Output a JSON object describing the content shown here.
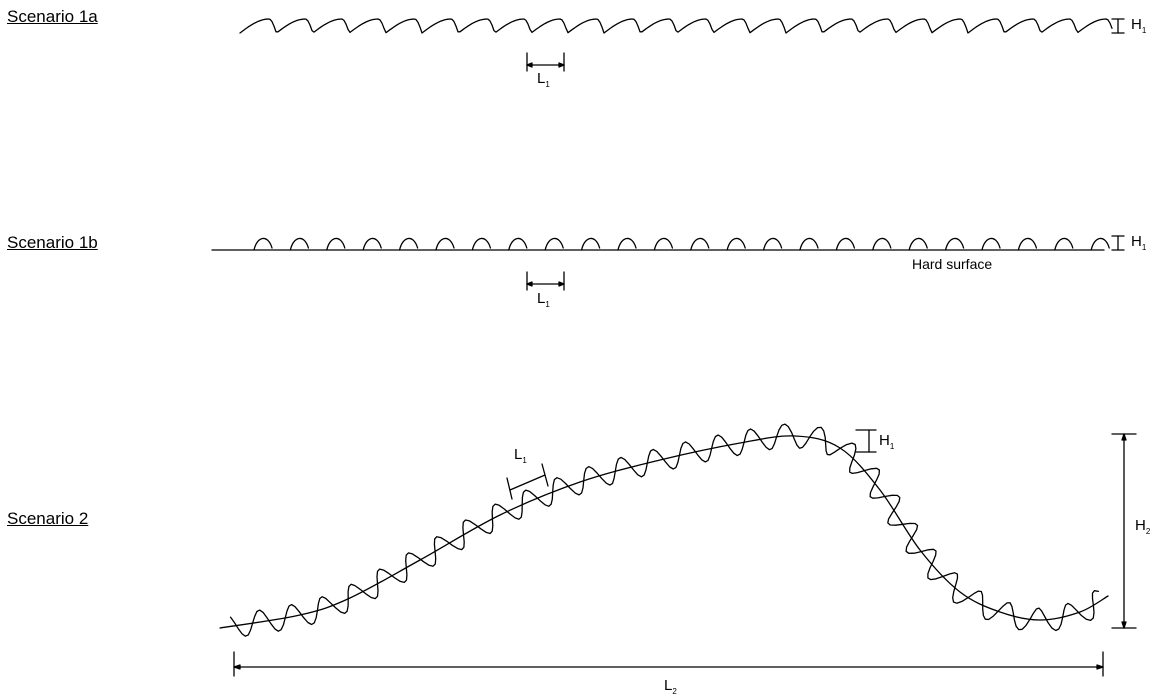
{
  "scenarios": {
    "s1a": "Scenario 1a",
    "s1b": "Scenario 1b",
    "s2": "Scenario 2"
  },
  "symbols": {
    "H": "H",
    "L": "L",
    "sub1": "1",
    "sub2": "2"
  },
  "surface_note": "Hard surface"
}
